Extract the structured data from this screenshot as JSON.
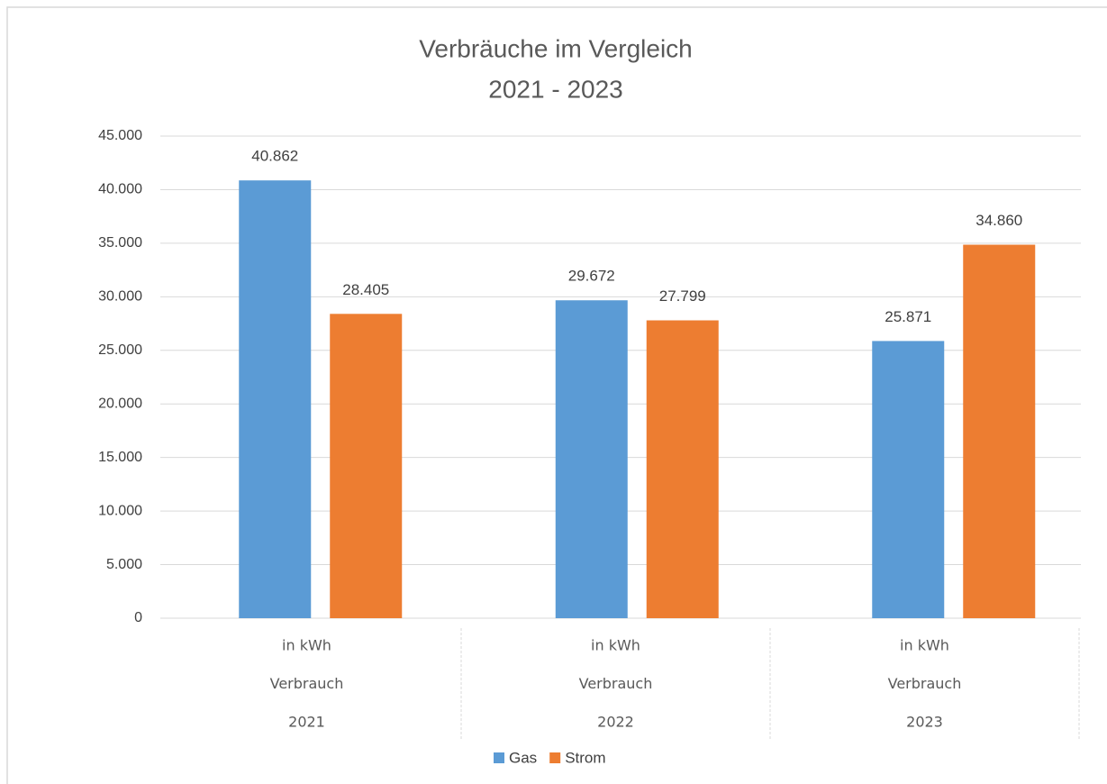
{
  "chart_data": {
    "type": "bar",
    "title": "Verbräuche im Vergleich",
    "subtitle": "2021 - 2023",
    "categories": [
      [
        "in kWh",
        "Verbrauch",
        "2021"
      ],
      [
        "in kWh",
        "Verbrauch",
        "2022"
      ],
      [
        "in kWh",
        "Verbrauch",
        "2023"
      ]
    ],
    "series": [
      {
        "name": "Gas",
        "color": "#5b9bd5",
        "values": [
          40862,
          29672,
          25871
        ],
        "value_labels": [
          "40.862",
          "29.672",
          "25.871"
        ]
      },
      {
        "name": "Strom",
        "color": "#ed7d31",
        "values": [
          28405,
          27799,
          34860
        ],
        "value_labels": [
          "28.405",
          "27.799",
          "34.860"
        ]
      }
    ],
    "ylim": [
      0,
      45000
    ],
    "yticks": [
      0,
      {
        "value": 5000,
        "label": "5.000"
      },
      {
        "value": 10000,
        "label": "10.000"
      },
      {
        "value": 15000,
        "label": "15.000"
      },
      {
        "value": 20000,
        "label": "20.000"
      },
      {
        "value": 25000,
        "label": "25.000"
      },
      {
        "value": 30000,
        "label": "30.000"
      },
      {
        "value": 35000,
        "label": "35.000"
      },
      {
        "value": 40000,
        "label": "40.000"
      },
      {
        "value": 45000,
        "label": "45.000"
      }
    ],
    "grid": true,
    "legend": "bottom"
  }
}
